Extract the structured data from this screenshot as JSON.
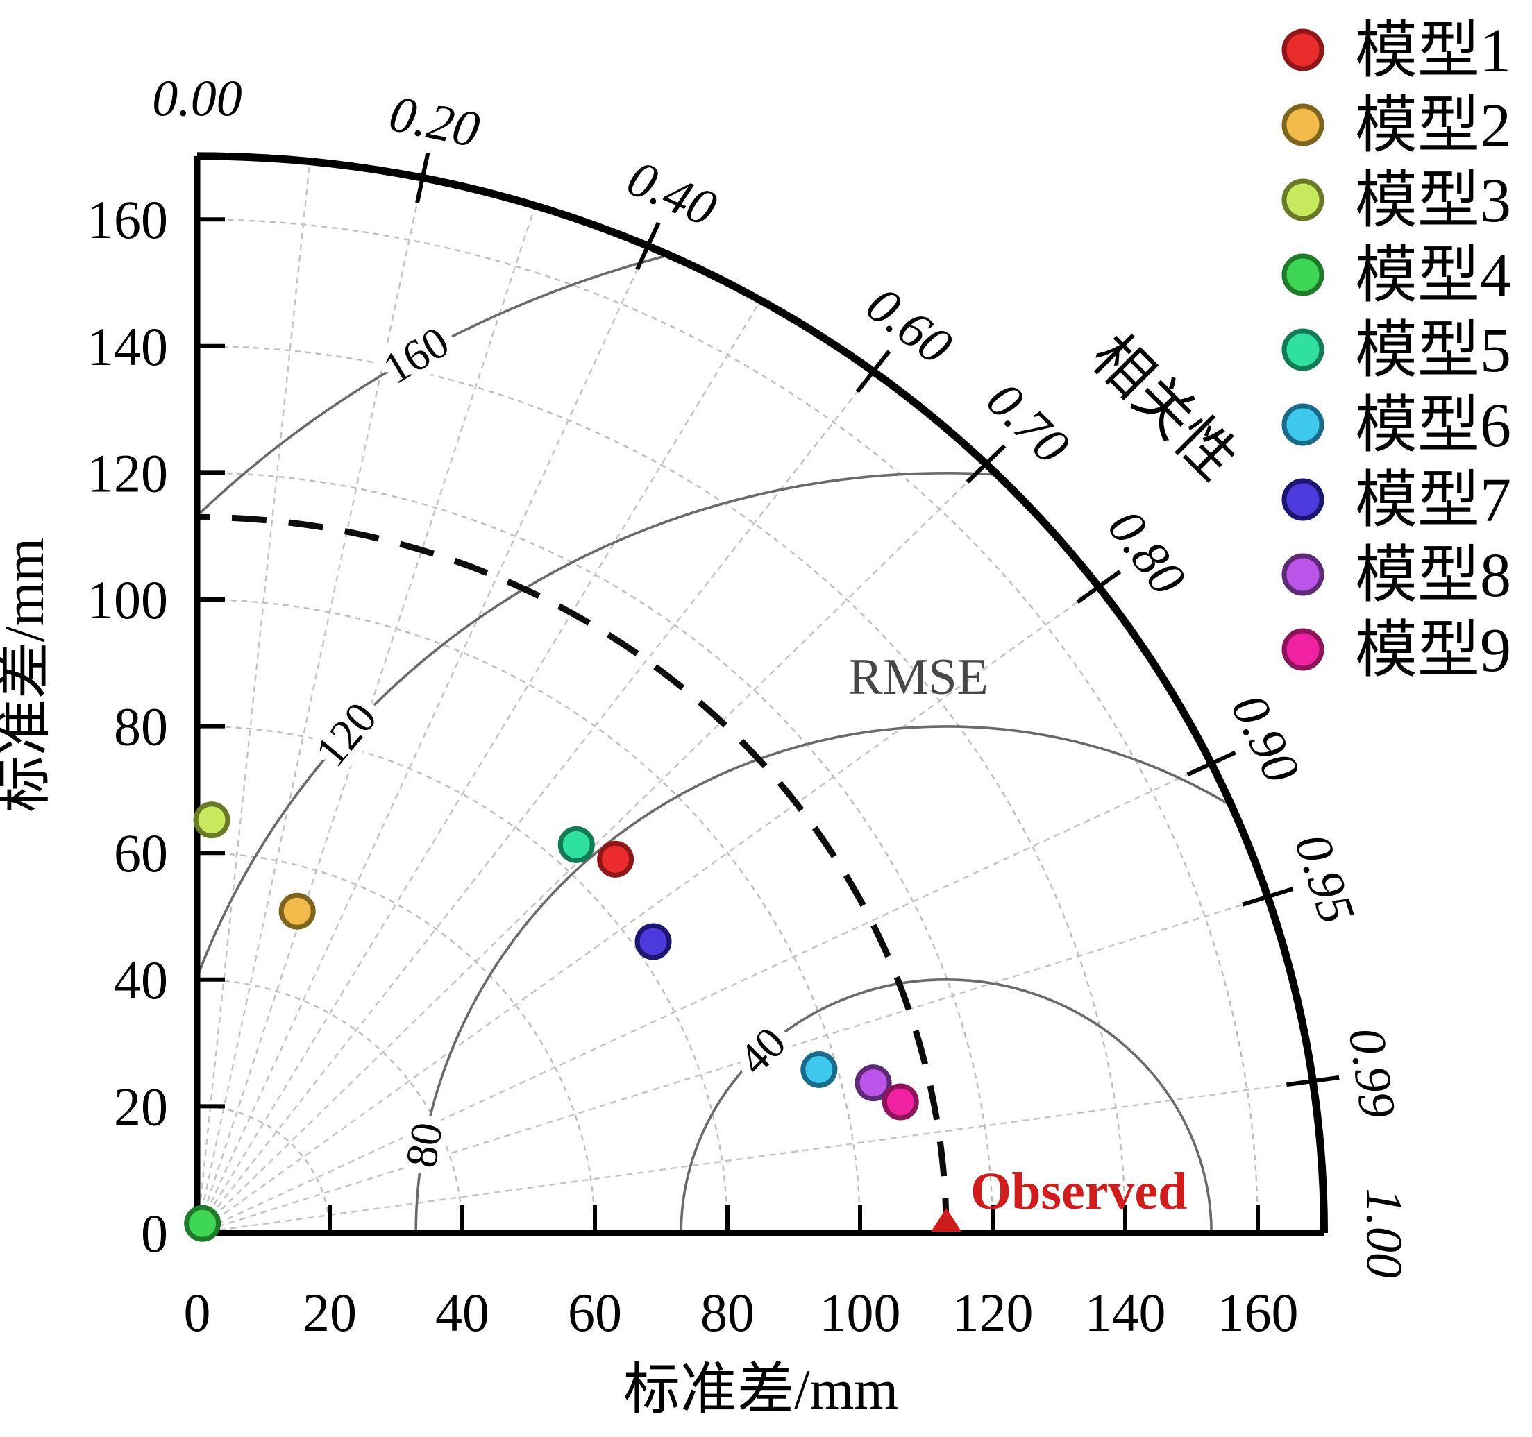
{
  "chart_data": {
    "type": "scatter",
    "subtype": "taylor_diagram",
    "title": "",
    "xlabel": "标准差/mm",
    "ylabel": "标准差/mm",
    "correlation": {
      "label": "相关性",
      "tick_labels": [
        "0.00",
        "0.20",
        "0.40",
        "0.60",
        "0.70",
        "0.80",
        "0.90",
        "0.95",
        "0.99",
        "1.00"
      ],
      "tick_values": [
        0.0,
        0.2,
        0.4,
        0.6,
        0.7,
        0.8,
        0.9,
        0.95,
        0.99,
        1.0
      ],
      "ray_values": [
        0.1,
        0.2,
        0.3,
        0.4,
        0.5,
        0.6,
        0.7,
        0.8,
        0.9,
        0.95,
        0.99
      ]
    },
    "std_axis": {
      "min": 0,
      "max": 170,
      "ticks": [
        0,
        20,
        40,
        60,
        80,
        100,
        120,
        140,
        160
      ],
      "gridlines": [
        20,
        40,
        60,
        80,
        100,
        120,
        140,
        160
      ]
    },
    "rmse": {
      "label": "RMSE",
      "contours": [
        40,
        80,
        120,
        160
      ],
      "color": "#6a6a6a"
    },
    "observed": {
      "label": "Observed",
      "std": 113,
      "color": "#cf1d1d",
      "marker": "triangle"
    },
    "grid": true,
    "legend_position": "top-right",
    "series": [
      {
        "name": "模型1",
        "color": "#ea2c2c",
        "edge": "#8f1717",
        "x": 63.1,
        "y": 59.0,
        "std": 86.4,
        "corr": 0.73
      },
      {
        "name": "模型2",
        "color": "#f2b94b",
        "edge": "#7d641f",
        "x": 15.1,
        "y": 50.8,
        "std": 53.0,
        "corr": 0.28
      },
      {
        "name": "模型3",
        "color": "#c6e95e",
        "edge": "#6b7a28",
        "x": 2.2,
        "y": 65.2,
        "std": 65.2,
        "corr": 0.03
      },
      {
        "name": "模型4",
        "color": "#3fd656",
        "edge": "#1f7a2a",
        "x": 0.8,
        "y": 1.5,
        "std": 1.7,
        "corr": 0.45
      },
      {
        "name": "模型5",
        "color": "#2fe0a0",
        "edge": "#127a55",
        "x": 57.2,
        "y": 61.3,
        "std": 83.8,
        "corr": 0.68
      },
      {
        "name": "模型6",
        "color": "#3ec8ee",
        "edge": "#1a6a8a",
        "x": 93.8,
        "y": 25.8,
        "std": 97.3,
        "corr": 0.96
      },
      {
        "name": "模型7",
        "color": "#4b3bdc",
        "edge": "#1d1670",
        "x": 68.8,
        "y": 46.0,
        "std": 82.8,
        "corr": 0.83
      },
      {
        "name": "模型8",
        "color": "#bb54e8",
        "edge": "#5f2a78",
        "x": 102.0,
        "y": 23.7,
        "std": 104.7,
        "corr": 0.97
      },
      {
        "name": "模型9",
        "color": "#f022a2",
        "edge": "#8c1458",
        "x": 106.1,
        "y": 20.7,
        "std": 108.1,
        "corr": 0.98
      }
    ]
  }
}
